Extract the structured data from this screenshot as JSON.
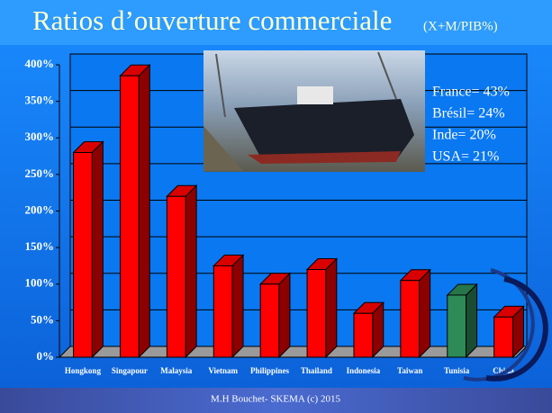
{
  "chart_data": {
    "type": "bar3d",
    "title": "Ratios d’ouverture commerciale",
    "subtitle": "(X+M/PIB%)",
    "categories": [
      "Hongkong",
      "Singapour",
      "Malaysia",
      "Vietnam",
      "Philippines",
      "Thailand",
      "Indonesia",
      "Taiwan",
      "Tunisia",
      "China"
    ],
    "values": [
      280,
      385,
      220,
      125,
      100,
      120,
      60,
      105,
      85,
      55
    ],
    "colors": [
      "#ff0000",
      "#ff0000",
      "#ff0000",
      "#ff0000",
      "#ff0000",
      "#ff0000",
      "#ff0000",
      "#ff0000",
      "#2e8b57",
      "#ff0000"
    ],
    "ylim": [
      0,
      400
    ],
    "yticks": [
      {
        "value": 0,
        "label": "0%"
      },
      {
        "value": 50,
        "label": "50%"
      },
      {
        "value": 100,
        "label": "100%"
      },
      {
        "value": 150,
        "label": "150%"
      },
      {
        "value": 200,
        "label": "200%"
      },
      {
        "value": 250,
        "label": "250%"
      },
      {
        "value": 300,
        "label": "300%"
      },
      {
        "value": 350,
        "label": "350%"
      },
      {
        "value": 400,
        "label": "400%"
      }
    ],
    "grid": true,
    "annotations": [
      "France= 43%",
      "Brésil= 24%",
      "Inde= 20%",
      "USA= 21%"
    ],
    "footer": "M.H Bouchet- SKEMA (c) 2015"
  }
}
